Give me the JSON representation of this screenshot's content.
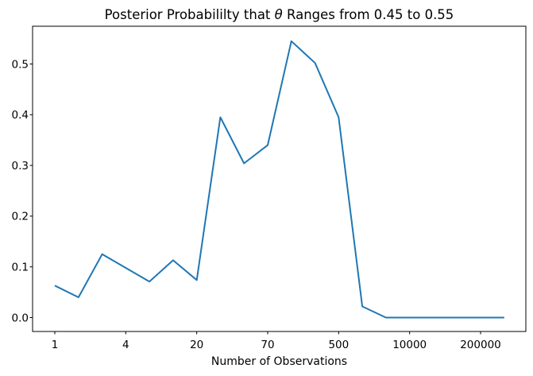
{
  "title": {
    "part1": "Posterior Probabililty that ",
    "theta": "θ",
    "part2": " Ranges from 0.45 to 0.55"
  },
  "chart_data": {
    "type": "line",
    "title": "Posterior Probabililty that θ Ranges from 0.45 to 0.55",
    "xlabel": "Number of Observations",
    "ylabel": "",
    "x_tick_labels": [
      "1",
      "4",
      "20",
      "70",
      "500",
      "10000",
      "200000"
    ],
    "x_tick_every_n_points": 3,
    "y_ticks": [
      "0.0",
      "0.1",
      "0.2",
      "0.3",
      "0.4",
      "0.5"
    ],
    "ylim": [
      -0.027,
      0.573
    ],
    "num_points": 20,
    "values": [
      0.063,
      0.04,
      0.125,
      0.098,
      0.071,
      0.113,
      0.074,
      0.395,
      0.304,
      0.34,
      0.545,
      0.502,
      0.395,
      0.022,
      0.0,
      0.0,
      0.0,
      0.0,
      0.0,
      0.0
    ],
    "line_color": "#1f77b4",
    "grid": false,
    "legend": false
  }
}
